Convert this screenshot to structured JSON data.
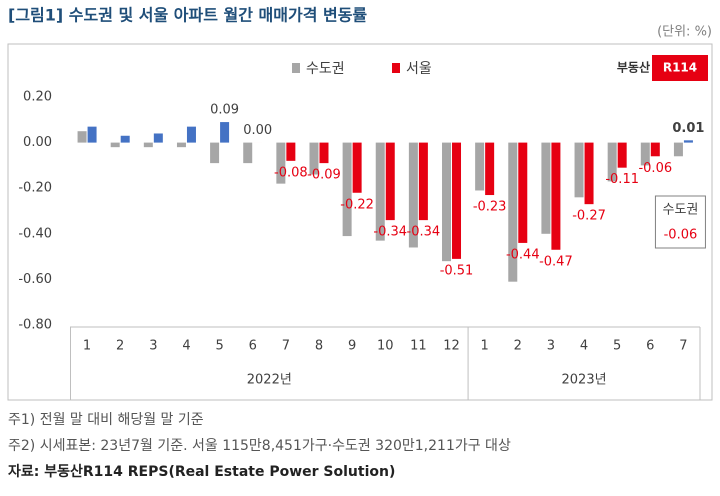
{
  "chart_data": {
    "type": "bar",
    "title": "[그림1] 수도권 및 서울 아파트 월간 매매가격 변동률",
    "unit": "(단위: %)",
    "logo_text": "부동산",
    "logo_badge": "R114",
    "categories": [
      "1",
      "2",
      "3",
      "4",
      "5",
      "6",
      "7",
      "8",
      "9",
      "10",
      "11",
      "12",
      "1",
      "2",
      "3",
      "4",
      "5",
      "6",
      "7"
    ],
    "groups": [
      {
        "name": "2022년",
        "size": 12
      },
      {
        "name": "2023년",
        "size": 7
      }
    ],
    "series": [
      {
        "name": "수도권",
        "color": "#a6a6a6",
        "values": [
          0.05,
          -0.02,
          -0.02,
          -0.02,
          -0.09,
          -0.09,
          -0.18,
          -0.14,
          -0.41,
          -0.43,
          -0.46,
          -0.52,
          -0.21,
          -0.61,
          -0.4,
          -0.24,
          -0.17,
          -0.1,
          -0.06
        ],
        "value_labels": [
          null,
          null,
          null,
          null,
          null,
          null,
          null,
          null,
          null,
          null,
          null,
          null,
          null,
          null,
          null,
          null,
          null,
          null,
          "-0.06"
        ]
      },
      {
        "name": "서울",
        "color": "#e60012",
        "positive_color": "#4472c4",
        "values": [
          0.07,
          0.03,
          0.04,
          0.07,
          0.09,
          0.0,
          -0.08,
          -0.09,
          -0.22,
          -0.34,
          -0.34,
          -0.51,
          -0.23,
          -0.44,
          -0.47,
          -0.27,
          -0.11,
          -0.06,
          0.01
        ],
        "value_labels": [
          null,
          null,
          null,
          null,
          "0.09",
          "0.00",
          "-0.08",
          "-0.09",
          "-0.22",
          "-0.34",
          "-0.34",
          "-0.51",
          "-0.23",
          "-0.44",
          "-0.47",
          "-0.27",
          "-0.11",
          "-0.06",
          "0.01"
        ]
      }
    ],
    "ylim": [
      -0.8,
      0.2
    ],
    "yticks": [
      {
        "value": 0.2,
        "label": "0.20"
      },
      {
        "value": 0,
        "label": "0.00"
      },
      {
        "value": -0.2,
        "label": "-0.20"
      },
      {
        "value": -0.4,
        "label": "-0.40"
      },
      {
        "value": -0.6,
        "label": "-0.60"
      },
      {
        "value": -0.8,
        "label": "-0.80"
      }
    ],
    "grid": false,
    "notes": [
      "주1) 전월 말 대비 해당월 말 기준",
      "주2) 시세표본: 23년7월 기준. 서울 115만8,451가구·수도권 320만1,211가구 대상"
    ],
    "source": "자료: 부동산R114 REPS(Real Estate Power Solution)"
  }
}
